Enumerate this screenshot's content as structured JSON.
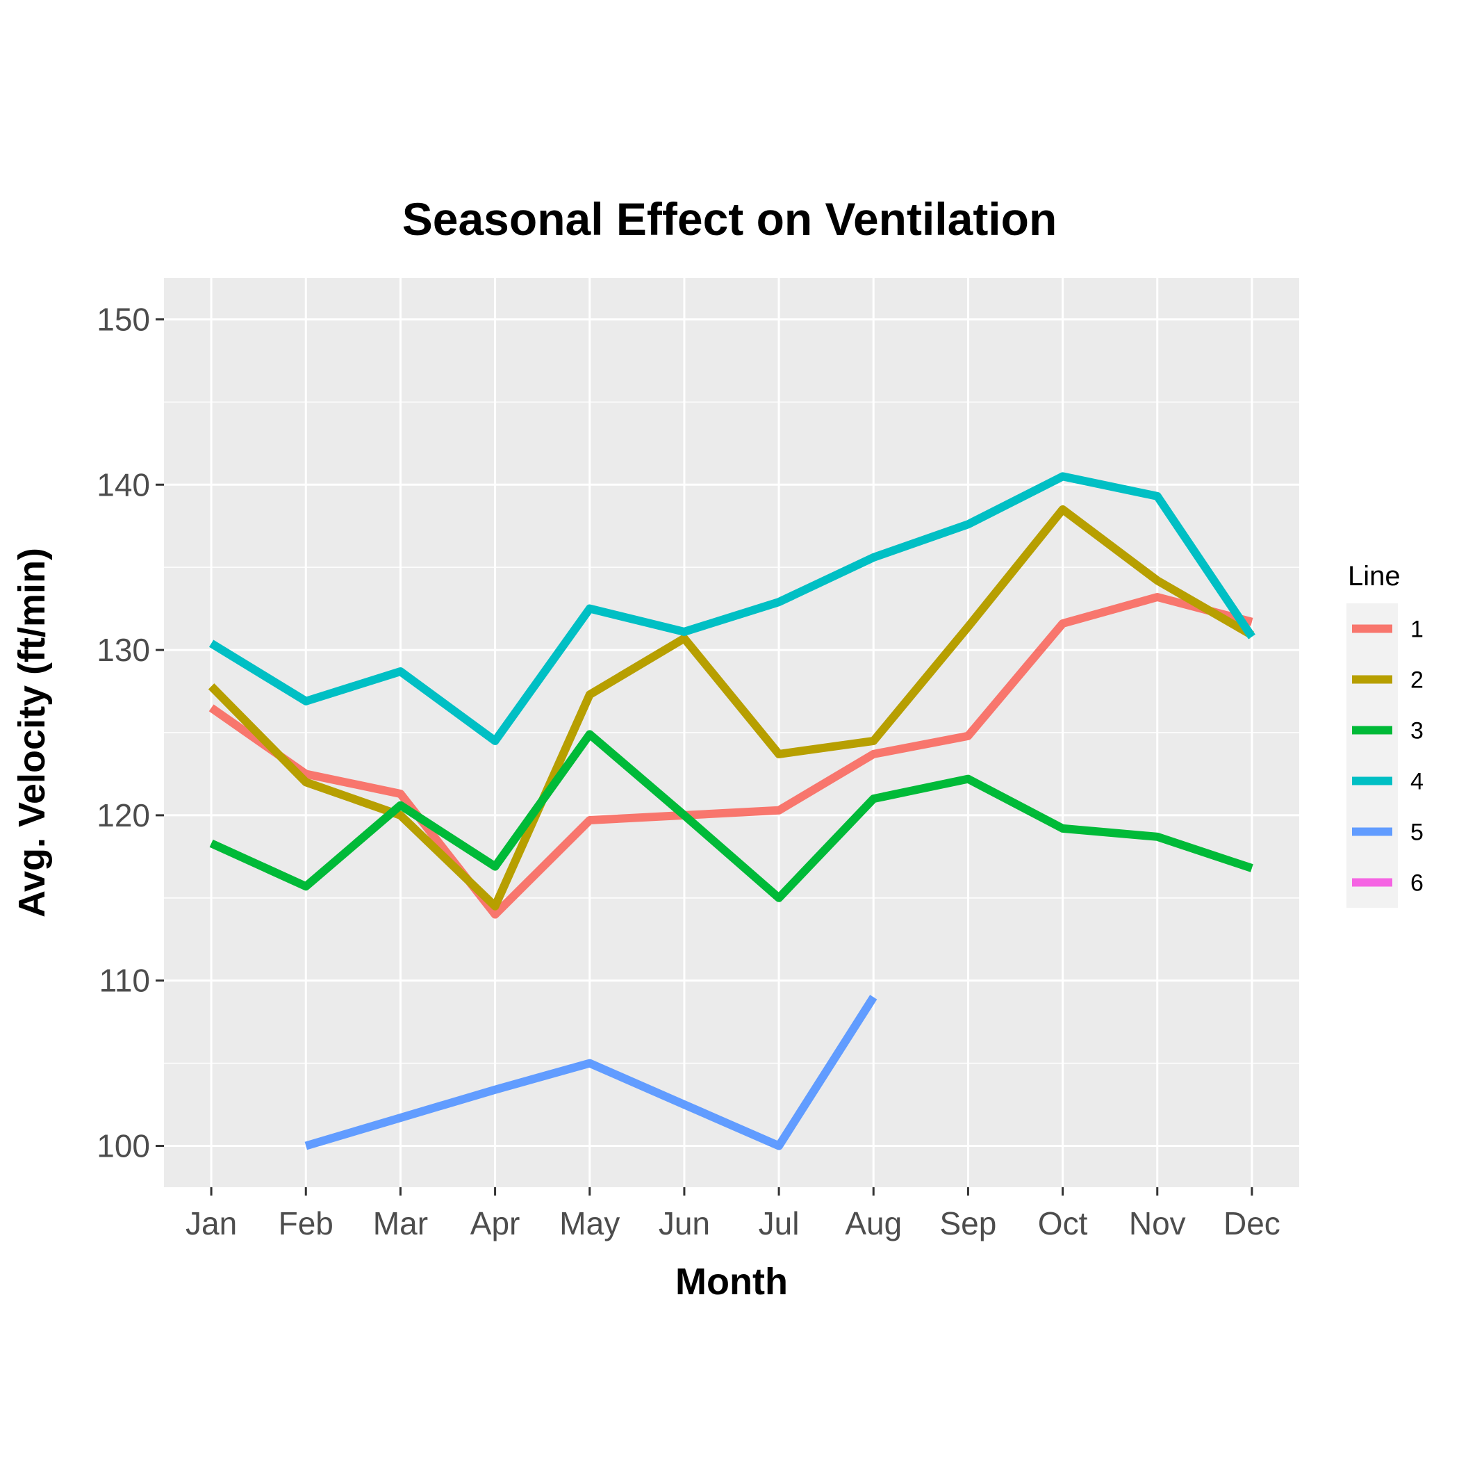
{
  "chart_data": {
    "type": "line",
    "title": "Seasonal Effect on Ventilation",
    "xlabel": "Month",
    "ylabel": "Avg. Velocity (ft/min)",
    "categories": [
      "Jan",
      "Feb",
      "Mar",
      "Apr",
      "May",
      "Jun",
      "Jul",
      "Aug",
      "Sep",
      "Oct",
      "Nov",
      "Dec"
    ],
    "ylim": [
      97.5,
      152.5
    ],
    "yticks": [
      100,
      110,
      120,
      130,
      140,
      150
    ],
    "grid": true,
    "legend": {
      "title": "Line",
      "placement": "right"
    },
    "series": [
      {
        "name": "1",
        "color": "#F8766D",
        "values": [
          126.5,
          122.5,
          121.3,
          114.0,
          119.7,
          120.0,
          120.3,
          123.7,
          124.8,
          131.6,
          133.2,
          131.7
        ]
      },
      {
        "name": "2",
        "color": "#B79F00",
        "values": [
          127.8,
          122.0,
          120.0,
          114.5,
          127.3,
          130.7,
          123.7,
          124.5,
          131.4,
          138.5,
          134.2,
          130.9
        ]
      },
      {
        "name": "3",
        "color": "#00BA38",
        "values": [
          118.3,
          115.7,
          120.6,
          116.9,
          124.9,
          120.0,
          115.0,
          121.0,
          122.2,
          119.2,
          118.7,
          116.8
        ]
      },
      {
        "name": "4",
        "color": "#00BFC4",
        "values": [
          130.4,
          126.9,
          128.7,
          124.5,
          132.5,
          131.1,
          132.9,
          135.6,
          137.6,
          140.5,
          139.3,
          130.8
        ]
      },
      {
        "name": "5",
        "color": "#619CFF",
        "values": [
          null,
          100.0,
          101.7,
          103.4,
          105.0,
          102.5,
          100.0,
          109.0,
          null,
          null,
          null,
          null
        ]
      },
      {
        "name": "6",
        "color": "#F564E3",
        "values": [
          null,
          null,
          null,
          null,
          null,
          null,
          null,
          null,
          null,
          null,
          null,
          null
        ]
      }
    ]
  }
}
